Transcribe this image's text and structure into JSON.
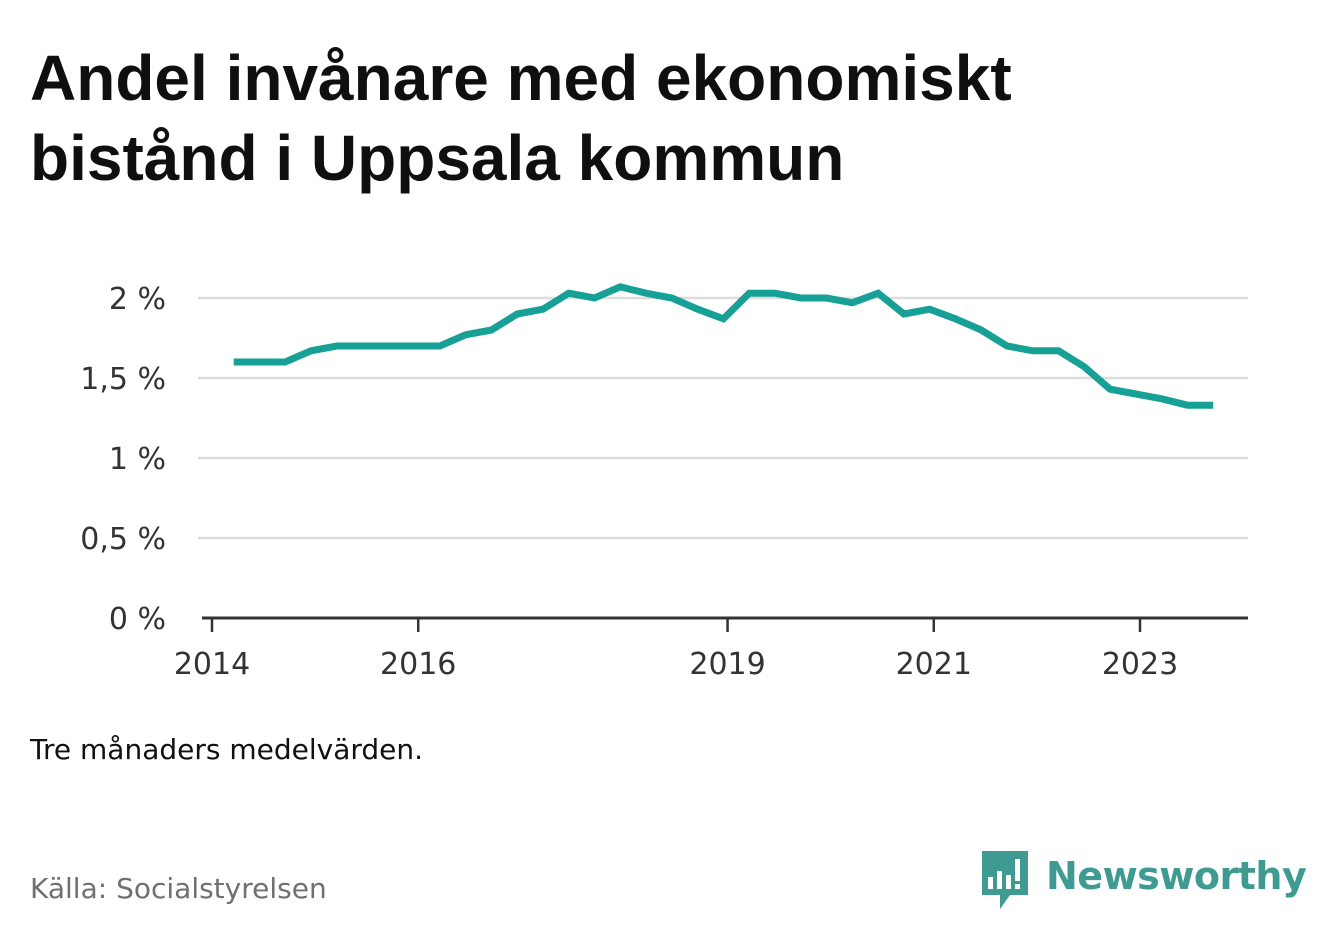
{
  "header": {
    "title_line1": "Andel invånare med ekonomiskt",
    "title_line2": "bistånd i Uppsala kommun"
  },
  "note": "Tre månaders medelvärden.",
  "source": "Källa: Socialstyrelsen",
  "brand": {
    "name": "Newsworthy",
    "icon": "chat-bar-chart-icon"
  },
  "colors": {
    "line": "#16a096",
    "grid": "#dddddd",
    "axis": "#333333",
    "brand": "#3f9b92"
  },
  "chart_data": {
    "type": "line",
    "title": "Andel invånare med ekonomiskt bistånd i Uppsala kommun",
    "xlabel": "",
    "ylabel": "",
    "ylim": [
      0,
      2
    ],
    "yticks": [
      0,
      0.5,
      1,
      1.5,
      2
    ],
    "ytick_labels": [
      "0 %",
      "0,5 %",
      "1 %",
      "1,5 %",
      "2 %"
    ],
    "xticks": [
      2014,
      2016,
      2019,
      2021,
      2023
    ],
    "xtick_labels": [
      "2014",
      "2016",
      "2019",
      "2021",
      "2023"
    ],
    "xlim": [
      2013.92,
      2024.0
    ],
    "grid": true,
    "series": [
      {
        "x": [
          2014.21,
          2014.46,
          2014.71,
          2014.96,
          2015.21,
          2015.46,
          2015.71,
          2015.96,
          2016.21,
          2016.46,
          2016.71,
          2016.96,
          2017.21,
          2017.46,
          2017.71,
          2017.96,
          2018.21,
          2018.46,
          2018.71,
          2018.96,
          2019.21,
          2019.46,
          2019.71,
          2019.96,
          2020.21,
          2020.46,
          2020.71,
          2020.96,
          2021.21,
          2021.46,
          2021.71,
          2021.96,
          2022.21,
          2022.46,
          2022.71,
          2022.96,
          2023.21,
          2023.46,
          2023.71
        ],
        "values": [
          1.6,
          1.6,
          1.6,
          1.67,
          1.7,
          1.7,
          1.7,
          1.7,
          1.7,
          1.77,
          1.8,
          1.9,
          1.93,
          2.03,
          2.0,
          2.07,
          2.03,
          2.0,
          1.93,
          1.87,
          2.03,
          2.03,
          2.0,
          2.0,
          1.97,
          2.03,
          1.9,
          1.93,
          1.87,
          1.8,
          1.7,
          1.67,
          1.67,
          1.57,
          1.43,
          1.4,
          1.37,
          1.33,
          1.33
        ]
      }
    ]
  }
}
